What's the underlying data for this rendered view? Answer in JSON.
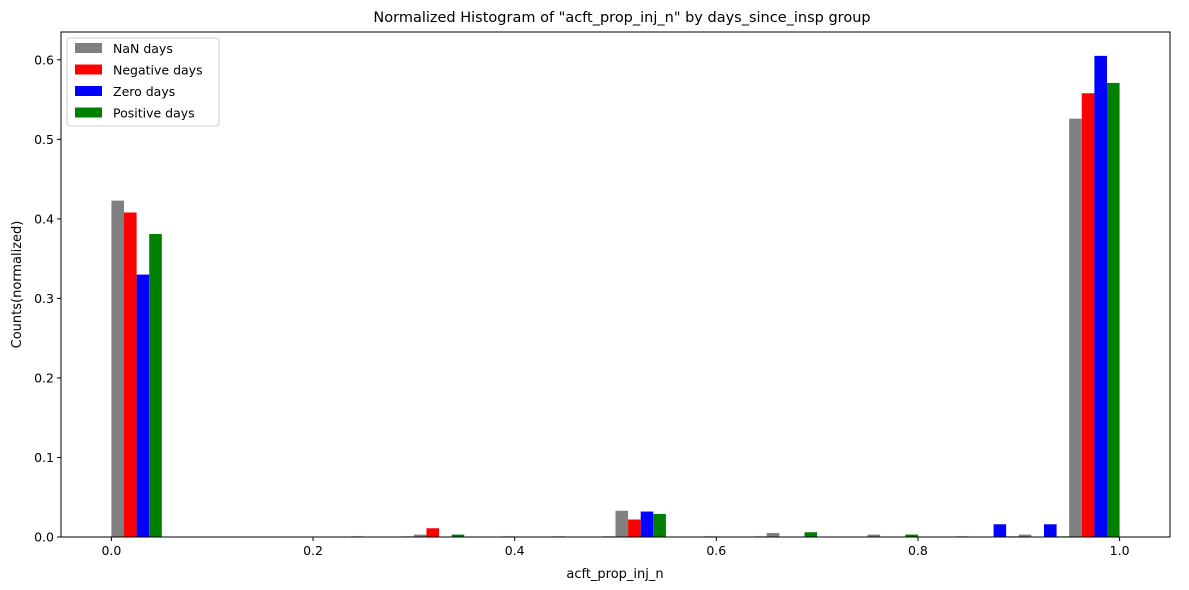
{
  "chart_data": {
    "type": "bar",
    "title": "Normalized Histogram of \"acft_prop_inj_n\" by days_since_insp group",
    "xlabel": "acft_prop_inj_n",
    "ylabel": "Counts(normalized)",
    "xlim": [
      -0.05,
      1.05
    ],
    "ylim": [
      0,
      0.635
    ],
    "xticks": [
      "0.0",
      "0.2",
      "0.4",
      "0.6",
      "0.8",
      "1.0"
    ],
    "yticks": [
      "0.0",
      "0.1",
      "0.2",
      "0.3",
      "0.4",
      "0.5",
      "0.6"
    ],
    "grid": false,
    "legend_position": "top-left",
    "bin_starts": [
      0.0,
      0.05,
      0.1,
      0.15,
      0.2,
      0.25,
      0.3,
      0.35,
      0.4,
      0.45,
      0.5,
      0.55,
      0.6,
      0.65,
      0.7,
      0.75,
      0.8,
      0.85,
      0.9,
      0.95
    ],
    "series": [
      {
        "name": "NaN days",
        "color": "#808080",
        "values": [
          0.423,
          0,
          0,
          0,
          0,
          0,
          0.003,
          0.0005,
          0.0005,
          0.0005,
          0.033,
          0.0005,
          0.0005,
          0.005,
          0,
          0.003,
          0,
          0.0005,
          0.003,
          0.526
        ]
      },
      {
        "name": "Negative days",
        "color": "#ff0000",
        "values": [
          0.408,
          0,
          0,
          0,
          0,
          0,
          0.011,
          0,
          0,
          0,
          0.022,
          0,
          0,
          0,
          0,
          0,
          0,
          0,
          0,
          0.558
        ]
      },
      {
        "name": "Zero days",
        "color": "#0000ff",
        "values": [
          0.33,
          0,
          0,
          0,
          0,
          0,
          0,
          0,
          0,
          0,
          0.032,
          0,
          0,
          0,
          0,
          0,
          0,
          0.016,
          0.016,
          0.605
        ]
      },
      {
        "name": "Positive days",
        "color": "#008000",
        "values": [
          0.381,
          0,
          0,
          0,
          0.0008,
          0.0008,
          0.003,
          0.0008,
          0.0008,
          0.0008,
          0.029,
          0.0008,
          0.0008,
          0.006,
          0,
          0.003,
          0.0008,
          0.0008,
          0.0008,
          0.571
        ]
      }
    ]
  }
}
